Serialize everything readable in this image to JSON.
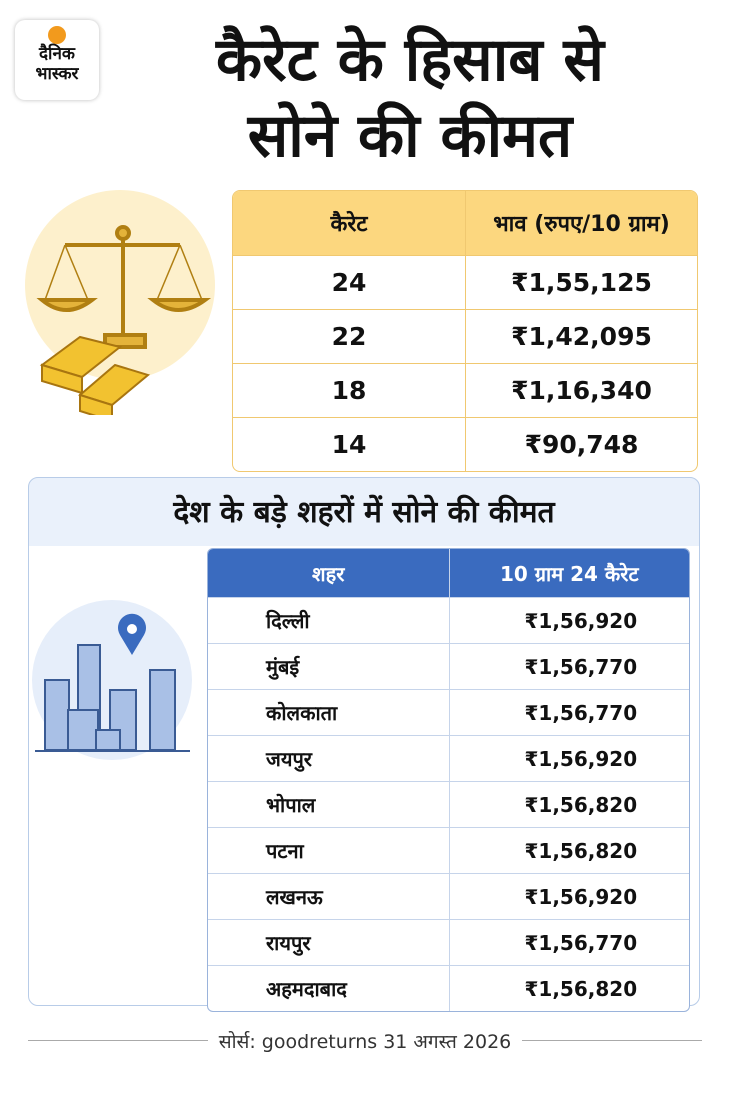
{
  "logo": {
    "line1": "दैनिक",
    "line2": "भास्कर"
  },
  "header": {
    "title_line1": "कैरेट के हिसाब से",
    "title_line2": "सोने की कीमत"
  },
  "carat_table": {
    "columns": [
      "कैरेट",
      "भाव (रुपए/10 ग्राम)"
    ],
    "rows": [
      [
        "24",
        "₹1,55,125"
      ],
      [
        "22",
        "₹1,42,095"
      ],
      [
        "18",
        "₹1,16,340"
      ],
      [
        "14",
        "₹90,748"
      ]
    ]
  },
  "city_section": {
    "title": "देश के बड़े शहरों में सोने की कीमत",
    "columns": [
      "शहर",
      "10 ग्राम 24 कैरेट"
    ],
    "rows": [
      [
        "दिल्ली",
        "₹1,56,920"
      ],
      [
        "मुंबई",
        "₹1,56,770"
      ],
      [
        "कोलकाता",
        "₹1,56,770"
      ],
      [
        "जयपुर",
        "₹1,56,920"
      ],
      [
        "भोपाल",
        "₹1,56,820"
      ],
      [
        "पटना",
        "₹1,56,820"
      ],
      [
        "लखनऊ",
        "₹1,56,920"
      ],
      [
        "रायपुर",
        "₹1,56,770"
      ],
      [
        "अहमदाबाद",
        "₹1,56,820"
      ]
    ]
  },
  "footer": {
    "source": "सोर्स: goodreturns 31 अगस्त 2026"
  }
}
